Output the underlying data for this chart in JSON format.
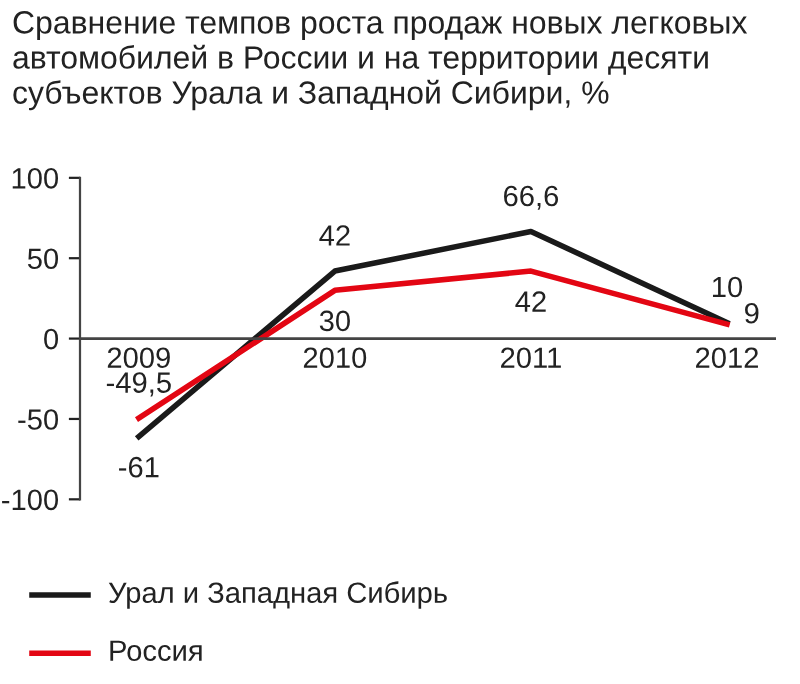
{
  "chart_data": {
    "type": "line",
    "title": "Сравнение темпов роста продаж новых легковых автомобилей в России и на территории десяти субъектов Урала и Западной Сибири, %",
    "categories": [
      "2009",
      "2010",
      "2011",
      "2012"
    ],
    "series": [
      {
        "name": "Урал и Западная Сибирь",
        "color": "#1a1a1a",
        "values": [
          -61,
          42,
          66.6,
          10
        ],
        "value_labels": [
          "-61",
          "42",
          "66,6",
          "10"
        ]
      },
      {
        "name": "Россия",
        "color": "#e30613",
        "values": [
          -49.5,
          30,
          42,
          9
        ],
        "value_labels": [
          "-49,5",
          "30",
          "42",
          "9"
        ]
      }
    ],
    "ylim": [
      -100,
      100
    ],
    "yticks": [
      -100,
      -50,
      0,
      50,
      100
    ],
    "grid": false,
    "legend": "bottom",
    "marker": "none",
    "line_style": "solid"
  }
}
